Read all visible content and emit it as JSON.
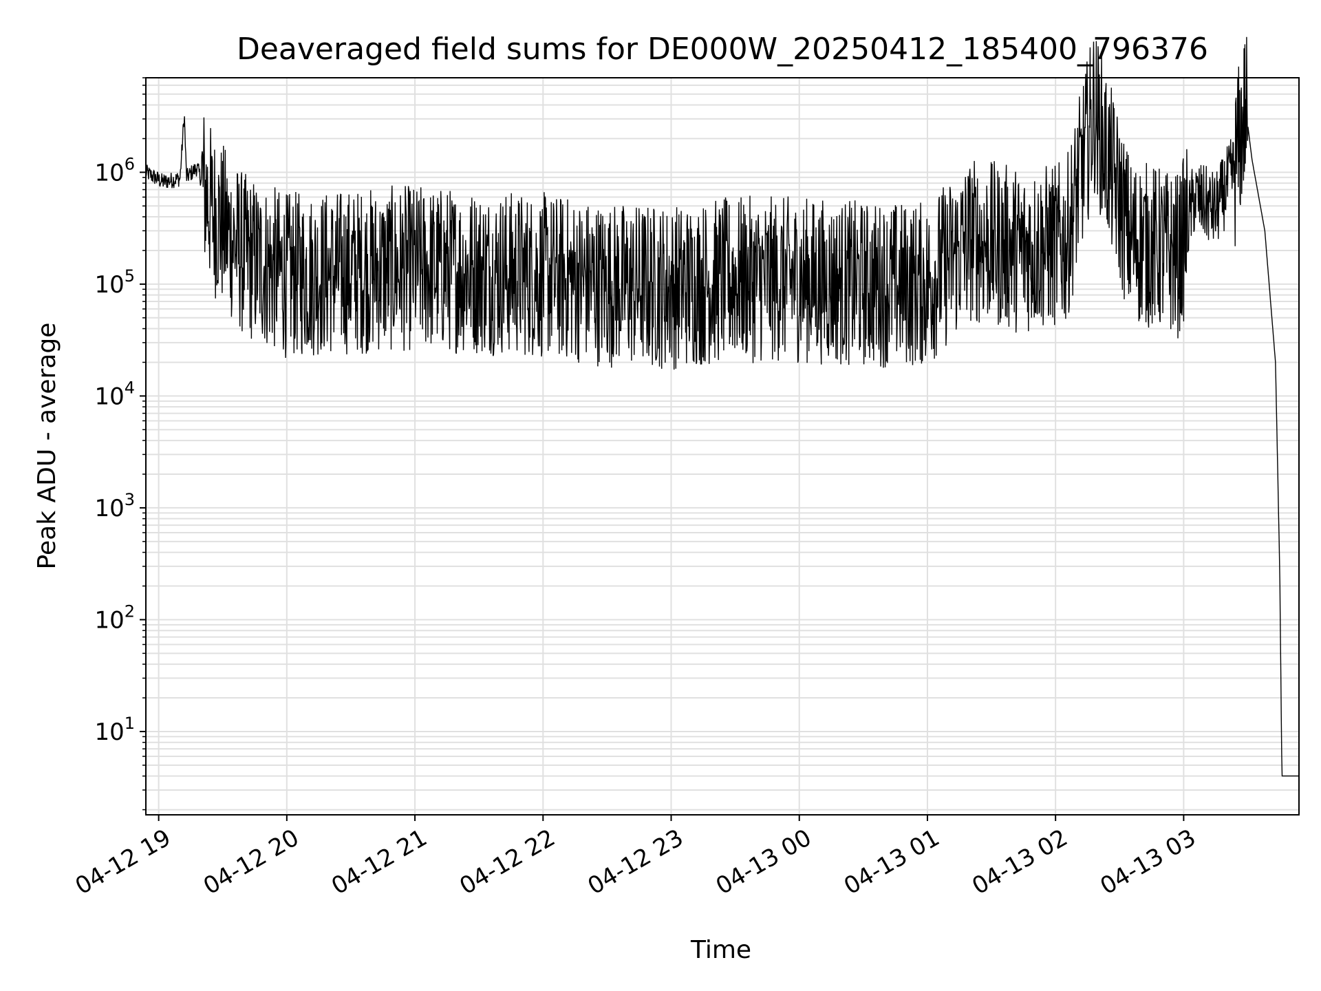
{
  "chart_data": {
    "type": "line",
    "title": "Deaveraged field sums for DE000W_20250412_185400_796376",
    "xlabel": "Time",
    "ylabel": "Peak ADU - average",
    "yscale": "log",
    "ylim": [
      1.8,
      7000000
    ],
    "xlim": [
      "2025-04-12T18:54",
      "2025-04-13T03:54"
    ],
    "grid": true,
    "line_color": "#000000",
    "grid_color": "#e0e0e0",
    "x_ticks": [
      {
        "t": "2025-04-12T19:00",
        "label": "04-12 19"
      },
      {
        "t": "2025-04-12T20:00",
        "label": "04-12 20"
      },
      {
        "t": "2025-04-12T21:00",
        "label": "04-12 21"
      },
      {
        "t": "2025-04-12T22:00",
        "label": "04-12 22"
      },
      {
        "t": "2025-04-12T23:00",
        "label": "04-12 23"
      },
      {
        "t": "2025-04-13T00:00",
        "label": "04-13 00"
      },
      {
        "t": "2025-04-13T01:00",
        "label": "04-13 01"
      },
      {
        "t": "2025-04-13T02:00",
        "label": "04-13 02"
      },
      {
        "t": "2025-04-13T03:00",
        "label": "04-13 03"
      }
    ],
    "y_ticks": [
      {
        "value": 10,
        "base": "10",
        "exp": "1"
      },
      {
        "value": 100,
        "base": "10",
        "exp": "2"
      },
      {
        "value": 1000,
        "base": "10",
        "exp": "3"
      },
      {
        "value": 10000,
        "base": "10",
        "exp": "4"
      },
      {
        "value": 100000,
        "base": "10",
        "exp": "5"
      },
      {
        "value": 1000000,
        "base": "10",
        "exp": "6"
      }
    ],
    "series": [
      {
        "values_note": "",
        "points": [
          [
            "2025-04-12T18:54",
            1000000
          ],
          [
            "2025-04-12T19:02",
            820000
          ],
          [
            "2025-04-12T19:10",
            880000
          ],
          [
            "2025-04-12T19:12",
            3300000
          ],
          [
            "2025-04-12T19:13",
            900000
          ],
          [
            "2025-04-12T19:18",
            1100000
          ],
          [
            "2025-04-12T19:25",
            450000
          ],
          [
            "2025-04-12T19:40",
            180000
          ],
          [
            "2025-04-12T20:00",
            120000
          ],
          [
            "2025-04-12T20:30",
            130000
          ],
          [
            "2025-04-12T21:00",
            140000
          ],
          [
            "2025-04-12T21:30",
            130000
          ],
          [
            "2025-04-12T22:00",
            120000
          ],
          [
            "2025-04-12T22:30",
            100000
          ],
          [
            "2025-04-12T23:00",
            95000
          ],
          [
            "2025-04-12T23:30",
            110000
          ],
          [
            "2025-04-13T00:00",
            110000
          ],
          [
            "2025-04-13T00:30",
            100000
          ],
          [
            "2025-04-13T01:00",
            100000
          ],
          [
            "2025-04-13T01:20",
            250000
          ],
          [
            "2025-04-13T01:45",
            200000
          ],
          [
            "2025-04-13T02:05",
            230000
          ],
          [
            "2025-04-13T02:18",
            3700000
          ],
          [
            "2025-04-13T02:35",
            250000
          ],
          [
            "2025-04-13T02:58",
            180000
          ],
          [
            "2025-04-13T03:05",
            600000
          ],
          [
            "2025-04-13T03:15",
            450000
          ],
          [
            "2025-04-13T03:24",
            1100000
          ],
          [
            "2025-04-13T03:29",
            3800000
          ],
          [
            "2025-04-13T03:32",
            1300000
          ],
          [
            "2025-04-13T03:38",
            300000
          ],
          [
            "2025-04-13T03:43",
            20000
          ],
          [
            "2025-04-13T03:45",
            270
          ],
          [
            "2025-04-13T03:46",
            4
          ],
          [
            "2025-04-13T03:54",
            4
          ]
        ]
      }
    ]
  }
}
